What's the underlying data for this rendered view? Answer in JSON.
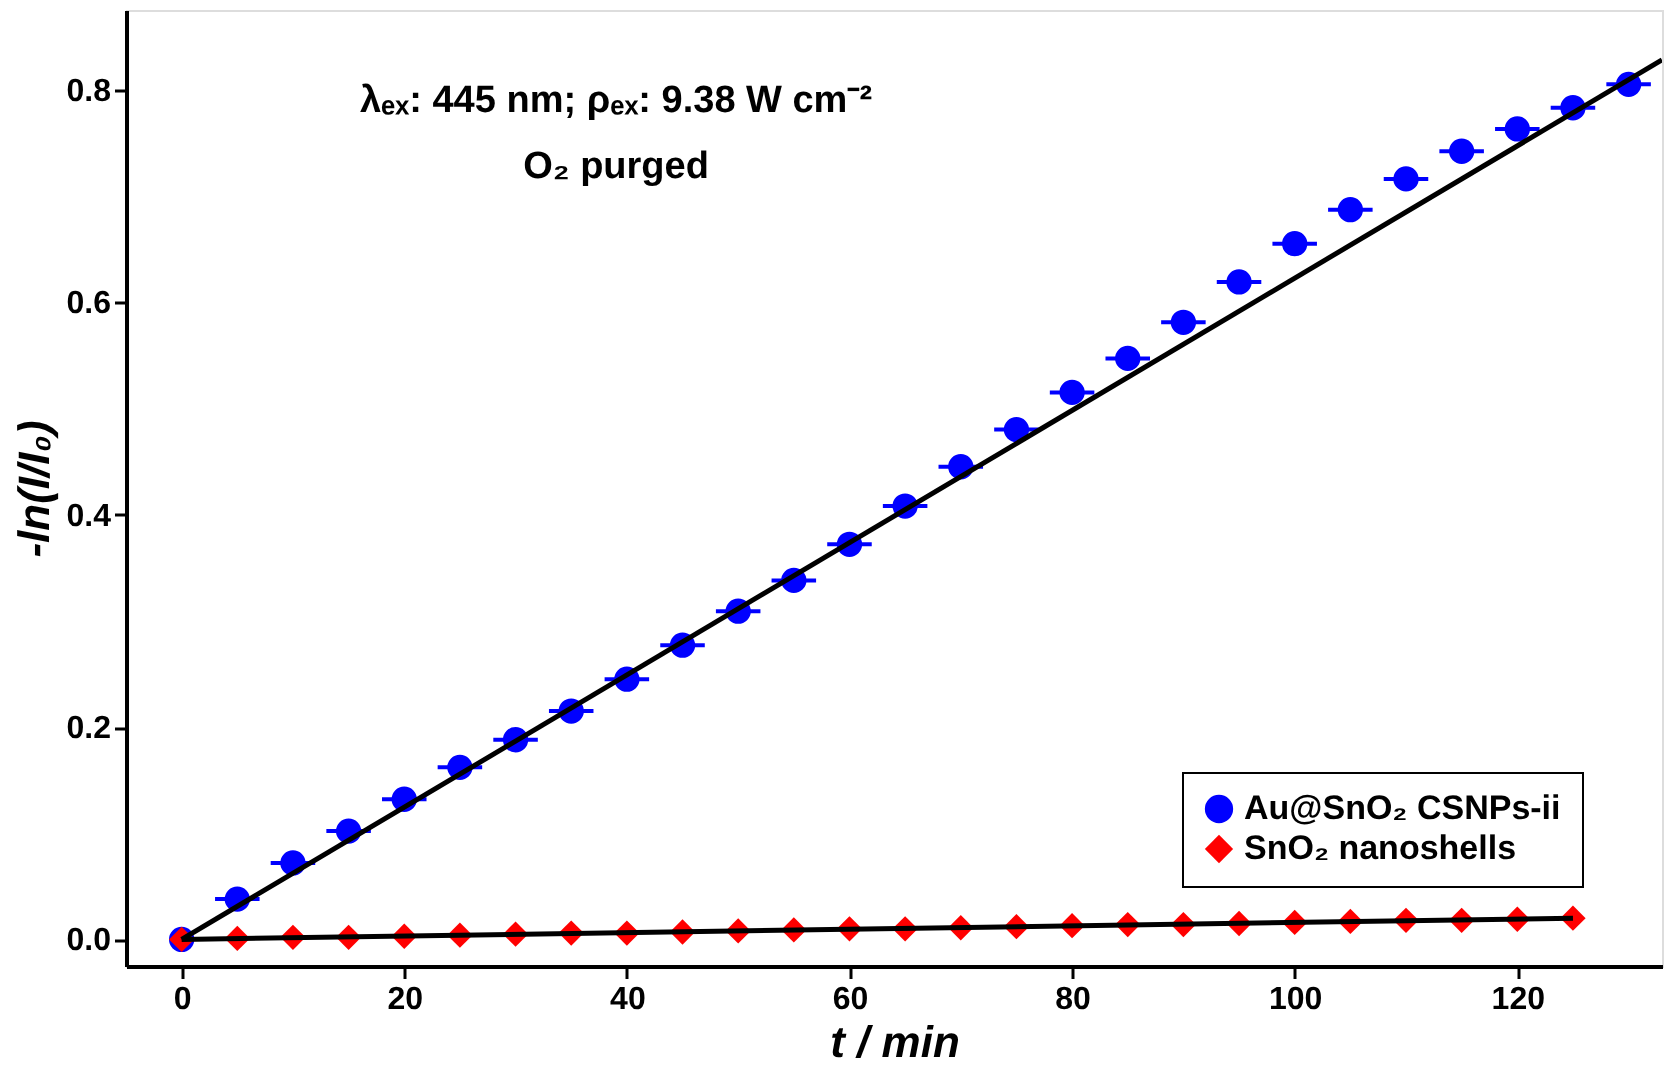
{
  "chart_data": {
    "type": "scatter",
    "xlabel": "t / min",
    "ylabel": "-ln(I/I₀)",
    "annotations": [
      "λₑₓ: 445 nm; ρₑₓ: 9.38 W cm⁻²",
      "O₂ purged"
    ],
    "x": [
      0,
      5,
      10,
      15,
      20,
      25,
      30,
      35,
      40,
      45,
      50,
      55,
      60,
      65,
      70,
      75,
      80,
      85,
      90,
      95,
      100,
      105,
      110,
      115,
      120,
      125,
      130
    ],
    "series": [
      {
        "name": "Au@SnO₂ CSNPs-ii",
        "color": "#0000ff",
        "marker": "circle",
        "values": [
          0,
          0.038,
          0.072,
          0.102,
          0.132,
          0.162,
          0.188,
          0.215,
          0.245,
          0.277,
          0.309,
          0.338,
          0.372,
          0.408,
          0.445,
          0.48,
          0.515,
          0.547,
          0.581,
          0.619,
          0.655,
          0.687,
          0.716,
          0.742,
          0.763,
          0.783,
          0.805
        ],
        "xerrors": [
          null,
          2,
          2,
          2,
          2,
          2,
          2,
          2,
          2,
          2,
          2,
          2,
          2,
          2,
          2,
          2,
          2,
          2,
          2,
          2,
          2,
          2,
          2,
          2,
          2,
          2,
          2
        ]
      },
      {
        "name": "SnO₂ nanoshells",
        "color": "#ff0000",
        "marker": "diamond",
        "x": [
          0,
          5,
          10,
          15,
          20,
          25,
          30,
          35,
          40,
          45,
          50,
          55,
          60,
          65,
          70,
          75,
          80,
          85,
          90,
          95,
          100,
          105,
          110,
          115,
          120,
          125
        ],
        "values": [
          0,
          0.001,
          0.002,
          0.002,
          0.003,
          0.004,
          0.005,
          0.006,
          0.006,
          0.007,
          0.008,
          0.009,
          0.01,
          0.01,
          0.011,
          0.012,
          0.013,
          0.014,
          0.014,
          0.015,
          0.016,
          0.017,
          0.018,
          0.018,
          0.019,
          0.02
        ]
      },
      {
        "type": "line",
        "color": "#000000",
        "line_style": "solid",
        "x": [
          0,
          133
        ],
        "values": [
          0,
          0.828
        ]
      },
      {
        "type": "line",
        "color": "#000000",
        "line_style": "solid",
        "x": [
          0,
          125
        ],
        "values": [
          0,
          0.02
        ]
      }
    ],
    "xlim": [
      -5,
      133
    ],
    "xticks": [
      0,
      20,
      40,
      60,
      80,
      100,
      120
    ],
    "ylim": [
      -0.025,
      0.875
    ],
    "yticks": [
      {
        "value": 0,
        "label": "0.0"
      },
      {
        "value": 0.2,
        "label": "0.2"
      },
      {
        "value": 0.4,
        "label": "0.4"
      },
      {
        "value": 0.6,
        "label": "0.6"
      },
      {
        "value": 0.8,
        "label": "0.8"
      }
    ],
    "grid": false,
    "legend": "bottom right"
  }
}
